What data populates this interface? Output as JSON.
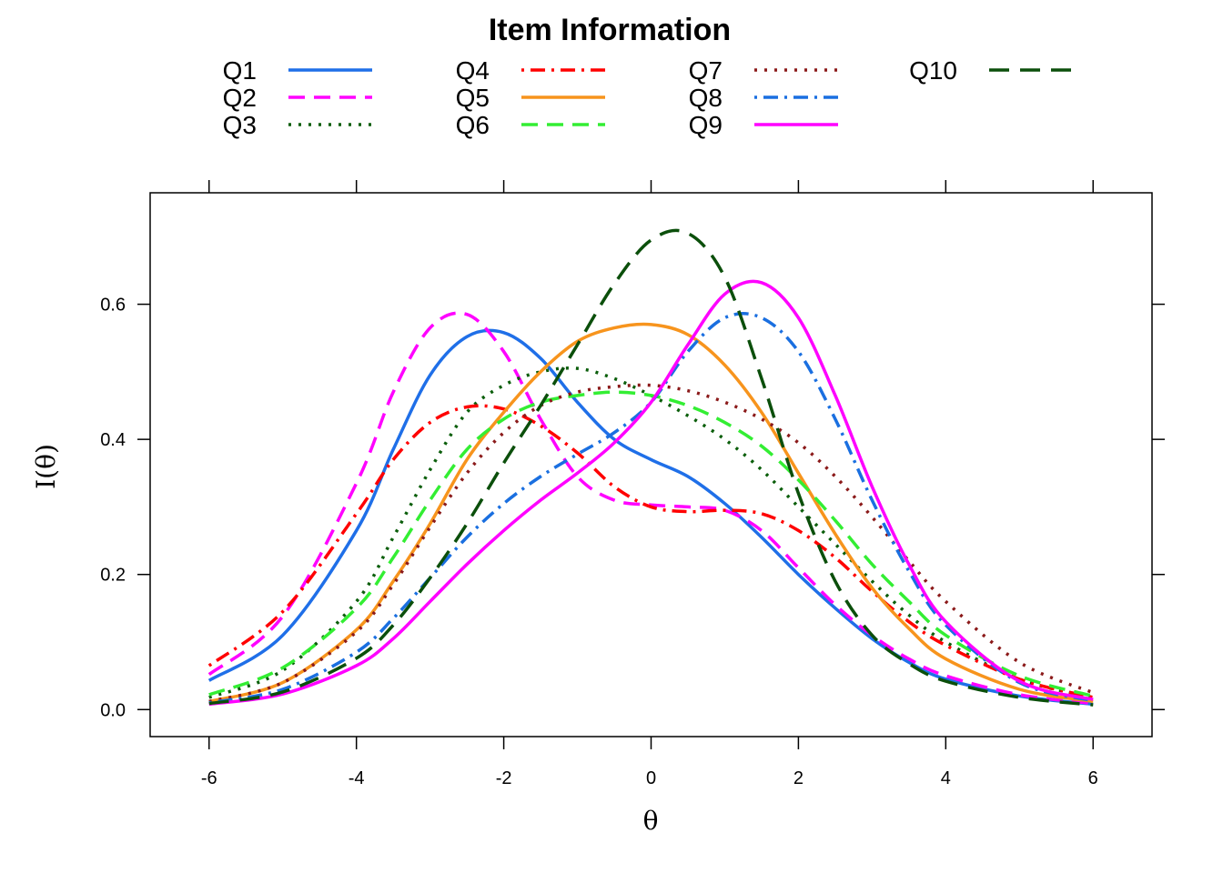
{
  "chart_data": {
    "type": "line",
    "title": "Item Information",
    "xlabel": "θ",
    "ylabel": "I(θ)",
    "xlim": [
      -6.8,
      6.8
    ],
    "ylim": [
      -0.04,
      0.765
    ],
    "x_ticks": [
      -6,
      -4,
      -2,
      0,
      2,
      4,
      6
    ],
    "x_tick_labels": [
      "-6",
      "-4",
      "-2",
      "0",
      "2",
      "4",
      "6"
    ],
    "y_ticks": [
      0.0,
      0.2,
      0.4,
      0.6
    ],
    "y_tick_labels": [
      "0.0",
      "0.2",
      "0.4",
      "0.6"
    ],
    "grid": false,
    "legend_position": "top",
    "x": [
      -6,
      -5,
      -4,
      -3.5,
      -3,
      -2.5,
      -2,
      -1.5,
      -1,
      -0.5,
      0,
      0.5,
      1,
      1.5,
      2,
      2.5,
      3,
      3.5,
      4,
      5,
      6
    ],
    "series": [
      {
        "name": "Q1",
        "color": "#1f6fe8",
        "dash": "solid",
        "values": [
          0.043,
          0.11,
          0.265,
          0.385,
          0.495,
          0.552,
          0.558,
          0.52,
          0.455,
          0.4,
          0.37,
          0.345,
          0.305,
          0.255,
          0.2,
          0.15,
          0.105,
          0.07,
          0.045,
          0.02,
          0.008
        ]
      },
      {
        "name": "Q2",
        "color": "#ff00ff",
        "dash": "dashed",
        "values": [
          0.052,
          0.138,
          0.335,
          0.47,
          0.565,
          0.585,
          0.53,
          0.43,
          0.345,
          0.31,
          0.303,
          0.3,
          0.295,
          0.265,
          0.21,
          0.155,
          0.11,
          0.075,
          0.05,
          0.022,
          0.009
        ]
      },
      {
        "name": "Q3",
        "color": "#0b5e0b",
        "dash": "dotted",
        "values": [
          0.018,
          0.058,
          0.16,
          0.255,
          0.355,
          0.44,
          0.48,
          0.5,
          0.505,
          0.49,
          0.465,
          0.435,
          0.4,
          0.355,
          0.3,
          0.245,
          0.19,
          0.14,
          0.1,
          0.045,
          0.018
        ]
      },
      {
        "name": "Q4",
        "color": "#ff0000",
        "dash": "dashdot",
        "values": [
          0.065,
          0.145,
          0.29,
          0.37,
          0.425,
          0.448,
          0.445,
          0.42,
          0.38,
          0.33,
          0.3,
          0.293,
          0.295,
          0.29,
          0.265,
          0.225,
          0.175,
          0.13,
          0.095,
          0.045,
          0.018
        ]
      },
      {
        "name": "Q5",
        "color": "#f7941d",
        "dash": "solid",
        "values": [
          0.012,
          0.04,
          0.118,
          0.19,
          0.275,
          0.37,
          0.44,
          0.5,
          0.545,
          0.565,
          0.57,
          0.555,
          0.51,
          0.44,
          0.35,
          0.26,
          0.18,
          0.12,
          0.075,
          0.03,
          0.012
        ]
      },
      {
        "name": "Q6",
        "color": "#33ee33",
        "dash": "dashed",
        "values": [
          0.022,
          0.062,
          0.15,
          0.225,
          0.31,
          0.385,
          0.43,
          0.455,
          0.465,
          0.47,
          0.465,
          0.45,
          0.425,
          0.39,
          0.34,
          0.28,
          0.215,
          0.16,
          0.11,
          0.05,
          0.02
        ]
      },
      {
        "name": "Q7",
        "color": "#8b1a1a",
        "dash": "dotted",
        "values": [
          0.012,
          0.04,
          0.115,
          0.185,
          0.27,
          0.35,
          0.41,
          0.45,
          0.47,
          0.478,
          0.48,
          0.472,
          0.455,
          0.43,
          0.395,
          0.345,
          0.285,
          0.22,
          0.16,
          0.07,
          0.025
        ]
      },
      {
        "name": "Q8",
        "color": "#1a6fe0",
        "dash": "dashdot",
        "values": [
          0.01,
          0.03,
          0.085,
          0.135,
          0.195,
          0.255,
          0.305,
          0.345,
          0.378,
          0.41,
          0.455,
          0.53,
          0.58,
          0.58,
          0.53,
          0.43,
          0.31,
          0.205,
          0.125,
          0.04,
          0.013
        ]
      },
      {
        "name": "Q9",
        "color": "#ff00ff",
        "dash": "solid",
        "values": [
          0.008,
          0.023,
          0.065,
          0.105,
          0.16,
          0.215,
          0.265,
          0.31,
          0.35,
          0.395,
          0.455,
          0.54,
          0.615,
          0.632,
          0.58,
          0.465,
          0.33,
          0.215,
          0.13,
          0.042,
          0.015
        ]
      },
      {
        "name": "Q10",
        "color": "#0b4f0b",
        "dash": "longdash",
        "values": [
          0.009,
          0.026,
          0.076,
          0.125,
          0.195,
          0.275,
          0.365,
          0.45,
          0.54,
          0.63,
          0.695,
          0.705,
          0.64,
          0.49,
          0.32,
          0.19,
          0.11,
          0.068,
          0.042,
          0.018,
          0.007
        ]
      }
    ]
  }
}
